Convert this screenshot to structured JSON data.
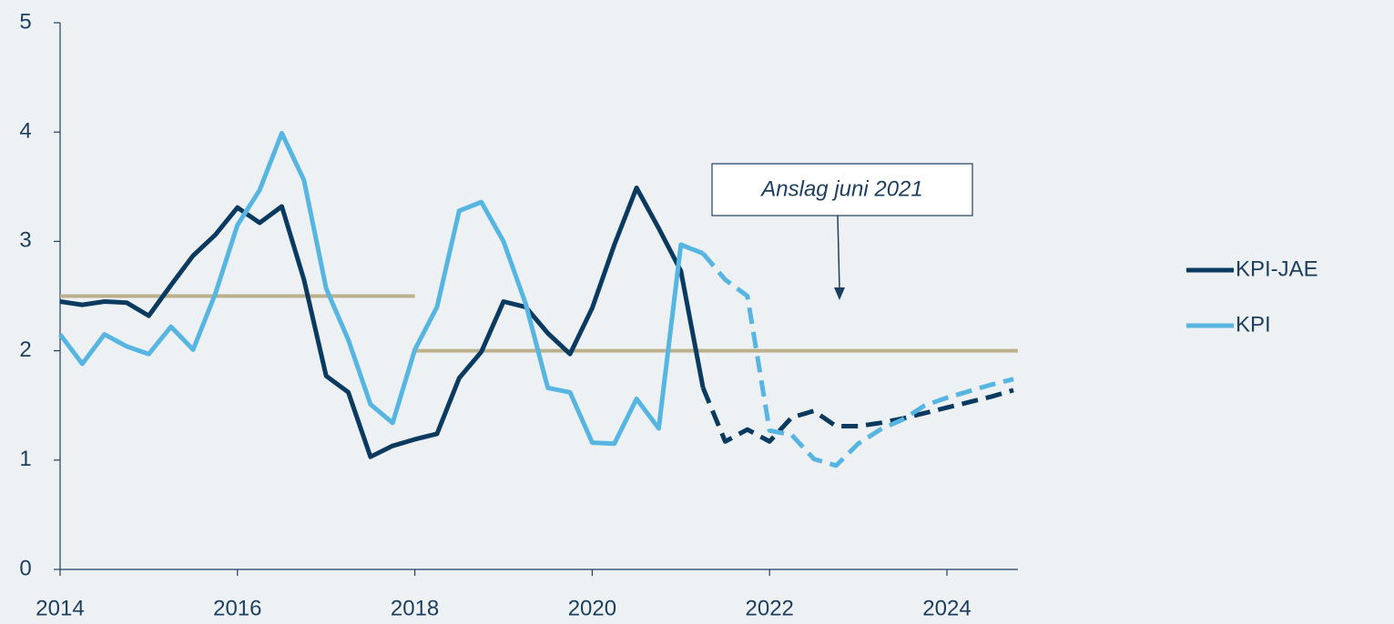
{
  "chart_data": {
    "type": "line",
    "x": [
      2014,
      2014.25,
      2014.5,
      2014.75,
      2015,
      2015.25,
      2015.5,
      2015.75,
      2016,
      2016.25,
      2016.5,
      2016.75,
      2017,
      2017.25,
      2017.5,
      2017.75,
      2018,
      2018.25,
      2018.5,
      2018.75,
      2019,
      2019.25,
      2019.5,
      2019.75,
      2020,
      2020.25,
      2020.5,
      2020.75,
      2021,
      2021.25,
      2021.5,
      2021.75,
      2022,
      2022.25,
      2022.5,
      2022.75,
      2023,
      2023.25,
      2023.5,
      2023.75,
      2024,
      2024.25,
      2024.5,
      2024.75
    ],
    "series": [
      {
        "name": "KPI-JAE",
        "color": "#0b3a60",
        "values": [
          2.45,
          2.42,
          2.45,
          2.44,
          2.32,
          2.6,
          2.87,
          3.06,
          3.31,
          3.17,
          3.32,
          2.65,
          1.77,
          1.62,
          1.03,
          1.13,
          1.19,
          1.24,
          1.75,
          1.99,
          2.45,
          2.4,
          2.16,
          1.97,
          2.39,
          2.97,
          3.49,
          3.12,
          2.73,
          1.66,
          1.17,
          1.28,
          1.17,
          1.39,
          1.45,
          1.31,
          1.31,
          1.34,
          1.38,
          1.43,
          1.48,
          1.53,
          1.58,
          1.64
        ]
      },
      {
        "name": "KPI",
        "color": "#56b5e1",
        "values": [
          2.15,
          1.88,
          2.15,
          2.04,
          1.97,
          2.22,
          2.01,
          2.52,
          3.15,
          3.47,
          3.99,
          3.56,
          2.57,
          2.1,
          1.51,
          1.34,
          2.01,
          2.4,
          3.28,
          3.36,
          3.0,
          2.43,
          1.66,
          1.62,
          1.16,
          1.15,
          1.56,
          1.29,
          2.97,
          2.89,
          2.65,
          2.5,
          1.27,
          1.23,
          1.01,
          0.95,
          1.15,
          1.28,
          1.37,
          1.5,
          1.57,
          1.63,
          1.69,
          1.74
        ]
      }
    ],
    "dashed_from": 2021.25,
    "reference_lines": [
      {
        "value": 2.5,
        "from": 2014,
        "to": 2018
      },
      {
        "value": 2,
        "from": 2018,
        "to": 2024.8
      }
    ],
    "reference_color": "#bdb08c",
    "annotation": "Anslag juni 2021",
    "xlim": [
      2014,
      2024.8
    ],
    "xticks": [
      2014,
      2016,
      2018,
      2020,
      2022,
      2024
    ],
    "ylim": [
      0,
      5
    ],
    "yticks": [
      0,
      1,
      2,
      3,
      4,
      5
    ],
    "legend": "right"
  }
}
